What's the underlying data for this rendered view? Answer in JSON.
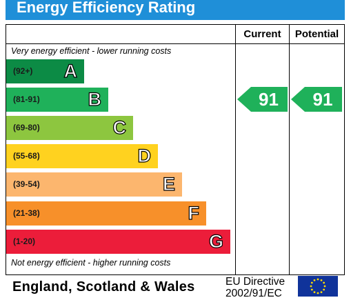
{
  "header": {
    "title": "Energy Efficiency Rating"
  },
  "columns": {
    "current": "Current",
    "potential": "Potential"
  },
  "notes": {
    "top": "Very energy efficient - lower running costs",
    "bottom": "Not energy efficient - higher running costs"
  },
  "colors": {
    "title_bar": "#1f8fd8",
    "A": "#0c8b45",
    "B": "#1fb15a",
    "C": "#8dc63f",
    "D": "#ffd21f",
    "E": "#fcb66e",
    "F": "#f7902a",
    "G": "#ec1d3a",
    "rating_arrow": "#1fb15a"
  },
  "chart_data": {
    "type": "bar",
    "title": "Energy Efficiency Rating",
    "categories": [
      "A",
      "B",
      "C",
      "D",
      "E",
      "F",
      "G"
    ],
    "bands": [
      {
        "letter": "A",
        "range": "(92+)"
      },
      {
        "letter": "B",
        "range": "(81-91)"
      },
      {
        "letter": "C",
        "range": "(69-80)"
      },
      {
        "letter": "D",
        "range": "(55-68)"
      },
      {
        "letter": "E",
        "range": "(39-54)"
      },
      {
        "letter": "F",
        "range": "(21-38)"
      },
      {
        "letter": "G",
        "range": "(1-20)"
      }
    ],
    "current": {
      "label": "Current",
      "value": 91,
      "band": "B"
    },
    "potential": {
      "label": "Potential",
      "value": 91,
      "band": "B"
    }
  },
  "footer": {
    "country": "England, Scotland & Wales",
    "directive_line1": "EU Directive",
    "directive_line2": "2002/91/EC"
  }
}
